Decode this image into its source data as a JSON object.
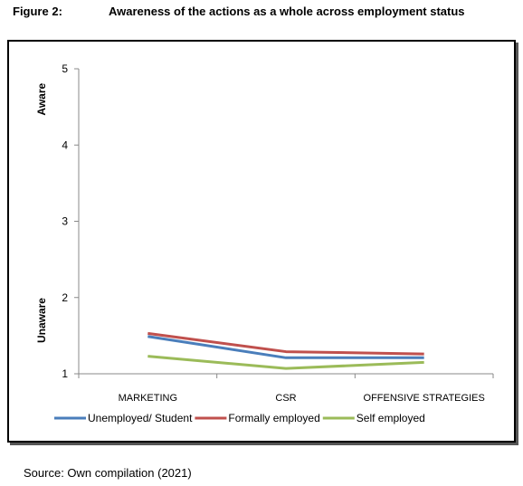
{
  "figure_label": "Figure 2:",
  "title": "Awareness of the actions as a whole across employment status",
  "source": "Source:  Own compilation  (2021)",
  "chart_data": {
    "type": "line",
    "title": "Awareness of the actions as a whole across employment status",
    "categories": [
      "MARKETING",
      "CSR",
      "OFFENSIVE  STRATEGIES"
    ],
    "ylim": [
      1,
      5
    ],
    "yticks": [
      1,
      2,
      3,
      4,
      5
    ],
    "y_end_labels": {
      "top": "Aware",
      "bottom": "Unaware"
    },
    "grid": false,
    "legend_position": "bottom",
    "series": [
      {
        "name": "Unemployed/ Student",
        "color": "#4a7ebb",
        "values": [
          1.49,
          1.21,
          1.21
        ]
      },
      {
        "name": "Formally employed",
        "color": "#c0504d",
        "values": [
          1.53,
          1.29,
          1.26
        ]
      },
      {
        "name": "Self employed",
        "color": "#9bbb59",
        "values": [
          1.23,
          1.07,
          1.15
        ]
      }
    ]
  }
}
